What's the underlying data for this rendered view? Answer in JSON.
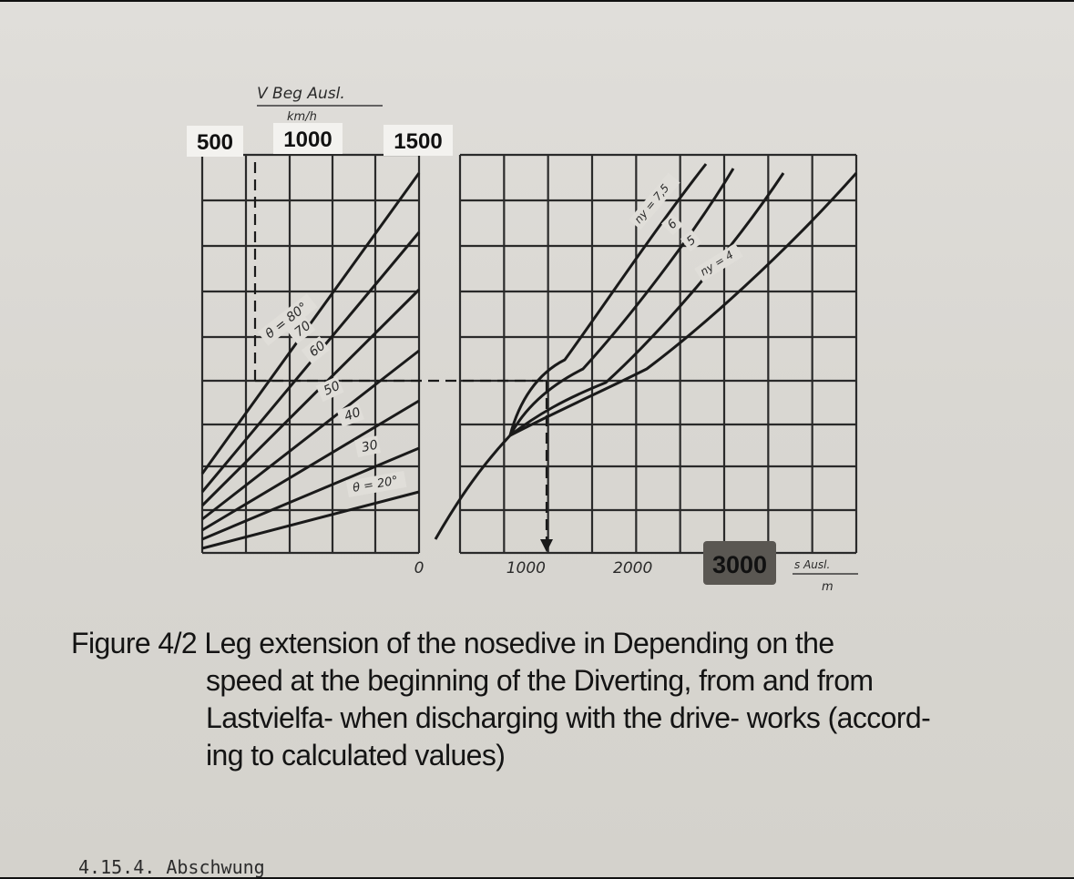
{
  "chart_data": {
    "type": "line",
    "left_panel": {
      "x_label_top": "V Beg Ausl.",
      "x_unit_top": "km/h",
      "x_ticks_top": [
        "500",
        "1000",
        "1500"
      ],
      "series": [
        {
          "name": "θ = 80°",
          "label": "θ = 80°"
        },
        {
          "name": "70",
          "label": "70"
        },
        {
          "name": "60",
          "label": "60"
        },
        {
          "name": "50",
          "label": "50"
        },
        {
          "name": "40",
          "label": "40"
        },
        {
          "name": "30",
          "label": "30"
        },
        {
          "name": "θ = 20°",
          "label": "θ = 20°"
        }
      ]
    },
    "right_panel": {
      "x_label": "s Ausl.",
      "x_unit": "m",
      "x_ticks": [
        "0",
        "1000",
        "2000",
        "3000"
      ],
      "x_values": [
        0,
        1000,
        2000,
        3000
      ],
      "series": [
        {
          "name": "ny = 7.5",
          "label": "ny = 7,5"
        },
        {
          "name": "6",
          "label": "6"
        },
        {
          "name": "5",
          "label": "5"
        },
        {
          "name": "ny = 4",
          "label": "ny = 4"
        }
      ]
    }
  },
  "caption": {
    "line1": "Figure 4/2 Leg extension of the nosedive in Depending on the",
    "line2": "speed at the beginning of the Diverting, from and from",
    "line3": "Lastvielfa- when discharging with the drive- works (accord-",
    "line4": "ing   to   calculated   values)"
  },
  "section_heading": "4.15.4. Abschwung",
  "colors": {
    "paper": "#d9d7d2",
    "ink": "#1a1a1a",
    "label_box": "#f3f2ef",
    "dark_label_box": "#5a5752"
  }
}
